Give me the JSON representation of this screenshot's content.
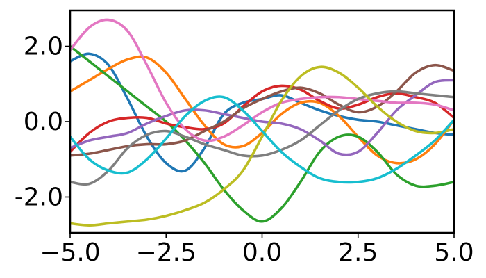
{
  "chart_data": {
    "type": "line",
    "title": "",
    "xlabel": "",
    "ylabel": "",
    "xlim": [
      -5.0,
      5.0
    ],
    "ylim": [
      -2.95,
      2.95
    ],
    "grid": false,
    "legend": "none",
    "x_ticks": [
      {
        "value": -5.0,
        "label": "−5.0"
      },
      {
        "value": -2.5,
        "label": "−2.5"
      },
      {
        "value": 0.0,
        "label": "0.0"
      },
      {
        "value": 2.5,
        "label": "2.5"
      },
      {
        "value": 5.0,
        "label": "5.0"
      }
    ],
    "y_ticks": [
      {
        "value": 2.0,
        "label": "2.0"
      },
      {
        "value": 0.0,
        "label": "0.0"
      },
      {
        "value": -2.0,
        "label": "-2.0"
      }
    ],
    "x": [
      -5.0,
      -4.5,
      -4.0,
      -3.5,
      -3.0,
      -2.5,
      -2.0,
      -1.5,
      -1.0,
      -0.5,
      0.0,
      0.5,
      1.0,
      1.5,
      2.0,
      2.5,
      3.0,
      3.5,
      4.0,
      4.5,
      5.0
    ],
    "series": [
      {
        "color": "#1f77b4",
        "values": [
          1.6,
          1.8,
          1.5,
          0.6,
          -0.4,
          -1.1,
          -1.3,
          -0.7,
          0.2,
          0.5,
          0.6,
          0.7,
          0.5,
          0.3,
          0.15,
          0.05,
          0.0,
          -0.1,
          -0.2,
          -0.3,
          -0.35
        ]
      },
      {
        "color": "#ff7f0e",
        "values": [
          0.8,
          1.1,
          1.4,
          1.65,
          1.7,
          1.3,
          0.6,
          -0.1,
          -0.6,
          -0.65,
          -0.3,
          0.2,
          0.5,
          0.5,
          0.15,
          -0.4,
          -0.9,
          -1.1,
          -1.0,
          -0.6,
          0.05
        ]
      },
      {
        "color": "#2ca02c",
        "values": [
          2.0,
          1.6,
          1.2,
          0.8,
          0.4,
          0.0,
          -0.5,
          -1.1,
          -1.8,
          -2.35,
          -2.65,
          -2.3,
          -1.6,
          -0.8,
          -0.4,
          -0.4,
          -0.8,
          -1.4,
          -1.7,
          -1.7,
          -1.6
        ]
      },
      {
        "color": "#d62728",
        "values": [
          -0.8,
          -0.3,
          0.0,
          0.1,
          0.1,
          -0.05,
          -0.15,
          -0.2,
          -0.05,
          0.4,
          0.8,
          0.95,
          0.85,
          0.55,
          0.35,
          0.45,
          0.65,
          0.75,
          0.65,
          0.5,
          0.1
        ]
      },
      {
        "color": "#9467bd",
        "values": [
          -0.7,
          -0.5,
          -0.4,
          -0.3,
          -0.05,
          0.15,
          0.3,
          0.3,
          0.2,
          0.1,
          0.0,
          -0.05,
          -0.2,
          -0.5,
          -0.85,
          -0.8,
          -0.3,
          0.3,
          0.7,
          1.05,
          1.1
        ]
      },
      {
        "color": "#8c564b",
        "values": [
          -0.9,
          -0.85,
          -0.75,
          -0.65,
          -0.6,
          -0.6,
          -0.5,
          -0.25,
          0.0,
          0.35,
          0.6,
          0.8,
          0.9,
          0.75,
          0.45,
          0.25,
          0.4,
          0.8,
          1.3,
          1.5,
          1.35
        ]
      },
      {
        "color": "#e377c2",
        "values": [
          1.9,
          2.5,
          2.7,
          2.4,
          1.5,
          0.5,
          -0.2,
          -0.5,
          -0.4,
          -0.1,
          0.25,
          0.5,
          0.6,
          0.65,
          0.65,
          0.6,
          0.55,
          0.5,
          0.5,
          0.45,
          0.3
        ]
      },
      {
        "color": "#7f7f7f",
        "values": [
          -1.6,
          -1.65,
          -1.3,
          -0.7,
          -0.35,
          -0.25,
          -0.4,
          -0.6,
          -0.75,
          -0.9,
          -0.9,
          -0.75,
          -0.5,
          -0.1,
          0.3,
          0.6,
          0.75,
          0.8,
          0.75,
          0.7,
          0.65
        ]
      },
      {
        "color": "#bcbd22",
        "values": [
          -2.7,
          -2.75,
          -2.7,
          -2.65,
          -2.6,
          -2.5,
          -2.35,
          -2.15,
          -1.8,
          -1.3,
          -0.4,
          0.55,
          1.2,
          1.45,
          1.3,
          0.9,
          0.4,
          0.0,
          -0.25,
          -0.3,
          -0.2
        ]
      },
      {
        "color": "#17becf",
        "values": [
          -0.4,
          -1.0,
          -1.3,
          -1.35,
          -1.0,
          -0.45,
          0.15,
          0.55,
          0.65,
          0.3,
          -0.25,
          -0.8,
          -1.2,
          -1.5,
          -1.6,
          -1.6,
          -1.5,
          -1.25,
          -0.9,
          -0.5,
          0.05
        ]
      }
    ]
  }
}
